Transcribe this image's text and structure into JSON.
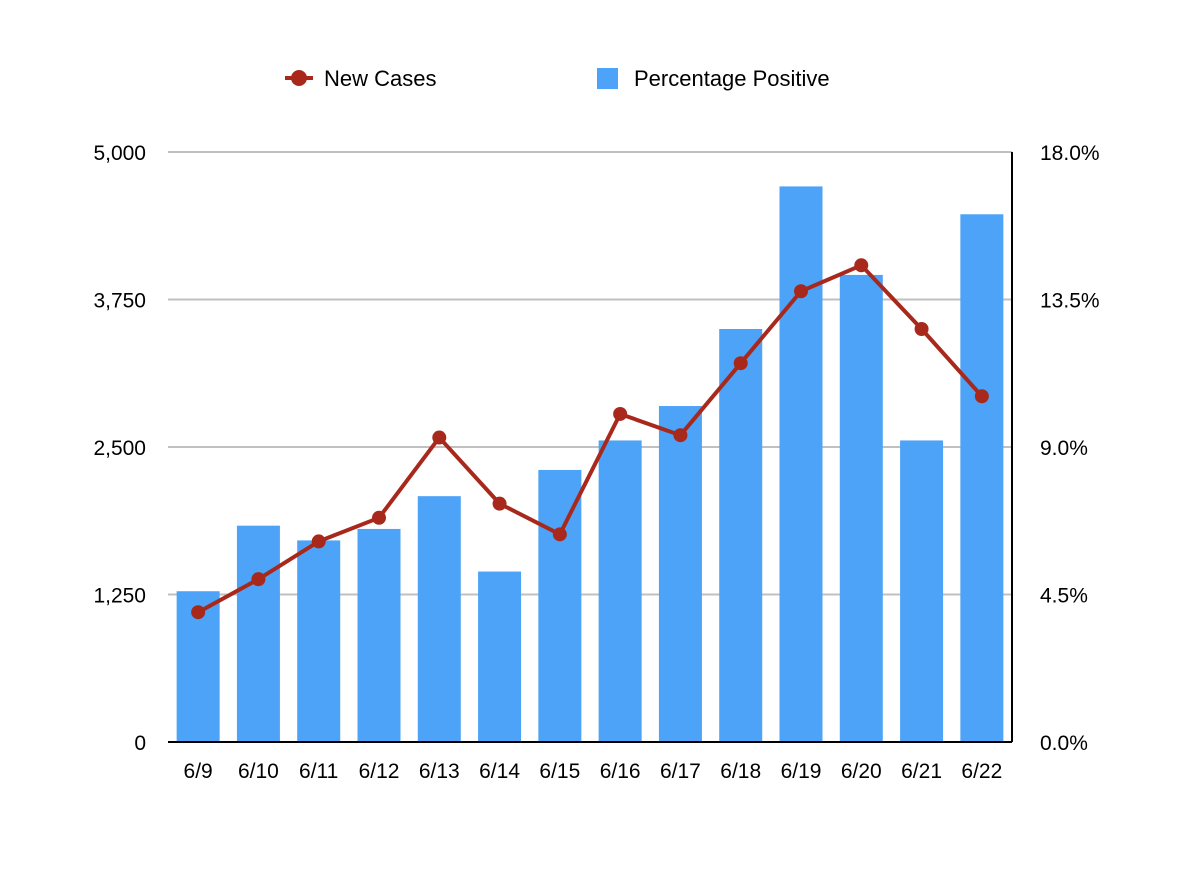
{
  "chart_data": {
    "type": "bar",
    "title": "",
    "xlabel": "",
    "ylabel": "",
    "y2label": "",
    "categories": [
      "6/9",
      "6/10",
      "6/11",
      "6/12",
      "6/13",
      "6/14",
      "6/15",
      "6/16",
      "6/17",
      "6/18",
      "6/19",
      "6/20",
      "6/21",
      "6/22"
    ],
    "series": [
      {
        "name": "Percentage Positive",
        "type": "bar",
        "axis": "right",
        "color": "#4da3f7",
        "values": [
          4.6,
          6.6,
          6.15,
          6.5,
          7.5,
          5.2,
          8.3,
          9.2,
          10.25,
          12.6,
          16.95,
          14.25,
          9.2,
          16.1
        ]
      },
      {
        "name": "New Cases",
        "type": "line",
        "axis": "left",
        "color": "#a8291c",
        "values": [
          1100,
          1380,
          1700,
          1900,
          2580,
          2020,
          1760,
          2780,
          2600,
          3210,
          3820,
          4040,
          3500,
          2930
        ]
      }
    ],
    "ylim": [
      0,
      5000
    ],
    "y2lim": [
      0,
      18
    ],
    "yticks": [
      "0",
      "1,250",
      "2,500",
      "3,750",
      "5,000"
    ],
    "y2ticks": [
      "0.0%",
      "4.5%",
      "9.0%",
      "13.5%",
      "18.0%"
    ],
    "grid": true,
    "legend": "top-center"
  }
}
